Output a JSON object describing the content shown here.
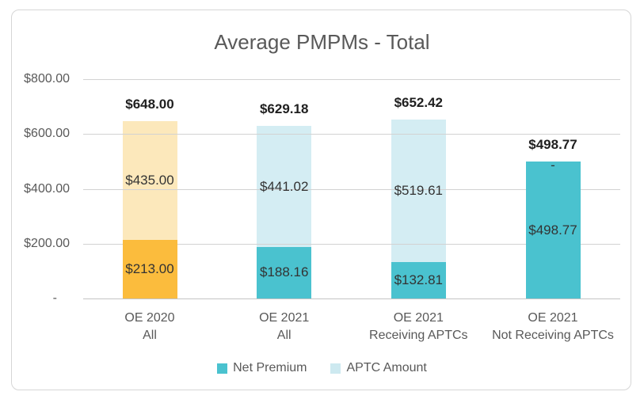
{
  "chart_data": {
    "type": "bar",
    "stacked": true,
    "title": "Average PMPMs - Total",
    "categories": [
      "OE 2020\nAll",
      "OE 2021\nAll",
      "OE 2021\nReceiving APTCs",
      "OE 2021\nNot Receiving APTCs"
    ],
    "series": [
      {
        "name": "Net Premium",
        "values": [
          213.0,
          188.16,
          132.81,
          498.77
        ],
        "data_labels": [
          "$213.00",
          "$188.16",
          "$132.81",
          "$498.77"
        ],
        "fill_colors": [
          "#FBBC3D",
          "#4AC2CF",
          "#4AC2CF",
          "#4AC2CF"
        ]
      },
      {
        "name": "APTC Amount",
        "values": [
          435.0,
          441.02,
          519.61,
          0
        ],
        "data_labels": [
          "$435.00",
          "$441.02",
          "$519.61",
          "-"
        ],
        "fill_colors": [
          "#FCE8BB",
          "#D4EDF3",
          "#D4EDF3",
          "#D4EDF3"
        ]
      }
    ],
    "totals": [
      648.0,
      629.18,
      652.42,
      498.77
    ],
    "total_labels": [
      "$648.00",
      "$629.18",
      "$652.42",
      "$498.77"
    ],
    "ylim": [
      0,
      800
    ],
    "y_ticks": [
      {
        "value": 800,
        "label": "$800.00"
      },
      {
        "value": 600,
        "label": "$600.00"
      },
      {
        "value": 400,
        "label": "$400.00"
      },
      {
        "value": 200,
        "label": "$200.00"
      },
      {
        "value": 0,
        "label": "-"
      }
    ],
    "grid": true,
    "legend": {
      "position": "bottom",
      "entries": [
        {
          "label": "Net Premium",
          "color": "#4AC2CF"
        },
        {
          "label": "APTC Amount",
          "color": "#CDE9F0"
        }
      ]
    }
  },
  "colors": {
    "frame_border": "#D6D6D6",
    "title_text": "#595959",
    "axis_text": "#595959",
    "data_label_text": "#333333",
    "total_label_text": "#1F1F1F",
    "gridline": "#D2D2D2",
    "baseline": "#C4C4C4",
    "background": "#FFFFFF"
  }
}
